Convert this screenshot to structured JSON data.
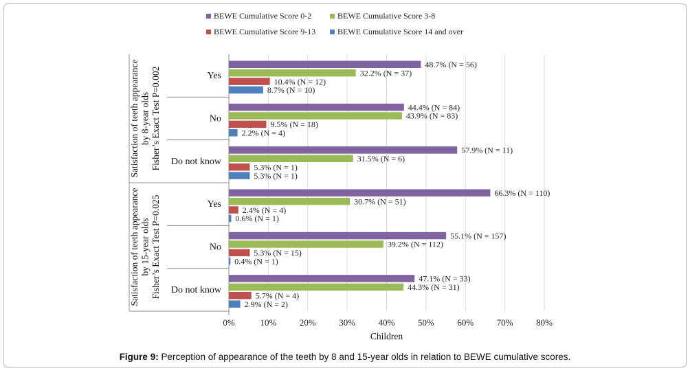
{
  "chart_data": {
    "type": "bar",
    "orientation": "horizontal",
    "xlabel": "Children",
    "xlim": [
      0,
      80
    ],
    "xticks": [
      "0%",
      "10%",
      "20%",
      "30%",
      "40%",
      "50%",
      "60%",
      "70%",
      "80%"
    ],
    "grid": true,
    "legend_position": "top",
    "series": [
      {
        "name": "BEWE Cumulative Score 0-2",
        "color": "#8064a2"
      },
      {
        "name": "BEWE Cumulative Score 3-8",
        "color": "#9bbb59"
      },
      {
        "name": "BEWE Cumulative Score 9-13",
        "color": "#c0504d"
      },
      {
        "name": "BEWE Cumulative Score 14 and over",
        "color": "#4f81bd"
      }
    ],
    "groups": [
      {
        "label": "Satisfaction of teeth appearance by 8-year olds Fisher's Exact Test P=0.002",
        "label_lines": [
          "Satisfaction of teeth appearance",
          "by 8-year olds",
          "Fisher’s Exact Test P=0.002"
        ],
        "categories": [
          {
            "label": "Yes",
            "values": [
              48.7,
              32.2,
              10.4,
              8.7
            ],
            "labels": [
              "48.7% (N = 56)",
              "32.2% (N = 37)",
              "10.4% (N = 12)",
              "8.7% (N = 10)"
            ]
          },
          {
            "label": "No",
            "values": [
              44.4,
              43.9,
              9.5,
              2.2
            ],
            "labels": [
              "44.4% (N = 84)",
              "43.9% (N = 83)",
              "9.5% (N = 18)",
              "2.2% (N = 4)"
            ]
          },
          {
            "label": "Do not know",
            "values": [
              57.9,
              31.5,
              5.3,
              5.3
            ],
            "labels": [
              "57.9% (N = 11)",
              "31.5% (N = 6)",
              "5.3% (N = 1)",
              "5.3% (N = 1)"
            ]
          }
        ]
      },
      {
        "label": "Satisfaction of teeth appearance by 15-year olds Fisher's Exact Test P=0.025",
        "label_lines": [
          "Satisfaction of teeth appearance",
          "by 15-year olds",
          "Fisher’s Exact Test P=0.025"
        ],
        "categories": [
          {
            "label": "Yes",
            "values": [
              66.3,
              30.7,
              2.4,
              0.6
            ],
            "labels": [
              "66.3% (N = 110)",
              "30.7% (N = 51)",
              "2.4% (N = 4)",
              "0.6% (N = 1)"
            ]
          },
          {
            "label": "No",
            "values": [
              55.1,
              39.2,
              5.3,
              0.4
            ],
            "labels": [
              "55.1% (N = 157)",
              "39.2% (N = 112)",
              "5.3% (N = 15)",
              "0.4% (N = 1)"
            ]
          },
          {
            "label": "Do not know",
            "values": [
              47.1,
              44.3,
              5.7,
              2.9
            ],
            "labels": [
              "47.1% (N = 33)",
              "44.3% (N = 31)",
              "5.7% (N = 4)",
              "2.9% (N = 2)"
            ]
          }
        ]
      }
    ]
  },
  "caption": {
    "prefix": "Figure 9:",
    "text": " Perception of appearance of the teeth by 8 and 15-year olds in relation to BEWE cumulative scores."
  }
}
